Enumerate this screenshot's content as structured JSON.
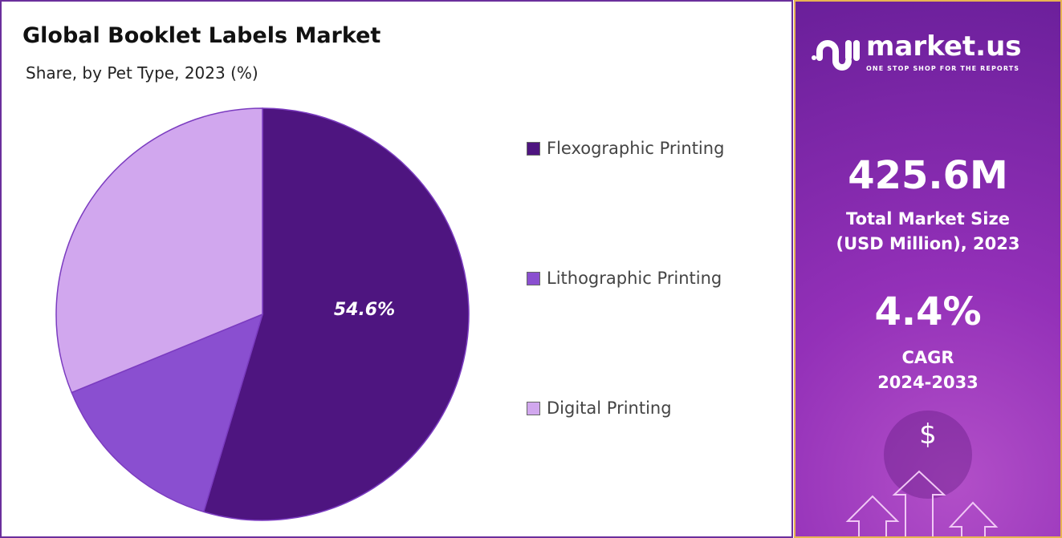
{
  "chart_data": {
    "type": "pie",
    "title": "Global Booklet Labels Market",
    "subtitle": "Share, by Pet Type, 2023 (%)",
    "start_angle": "12 o'clock, clockwise",
    "legend_position": "right",
    "slices": [
      {
        "name": "Flexographic Printing",
        "value": 54.6,
        "color": "#4e1580",
        "label": "54.6%"
      },
      {
        "name": "Lithographic Printing",
        "value": 14.2,
        "color": "#8a4fd0"
      },
      {
        "name": "Digital Printing",
        "value": 31.2,
        "color": "#d1a7ee"
      }
    ]
  },
  "panel": {
    "brand": "market.us",
    "tagline": "ONE STOP SHOP FOR THE REPORTS",
    "market_size": "425.6M",
    "market_size_label_1": "Total Market Size",
    "market_size_label_2": "(USD Million), 2023",
    "cagr": "4.4%",
    "cagr_label": "CAGR",
    "cagr_period": "2024-2033",
    "dollar": "$"
  }
}
